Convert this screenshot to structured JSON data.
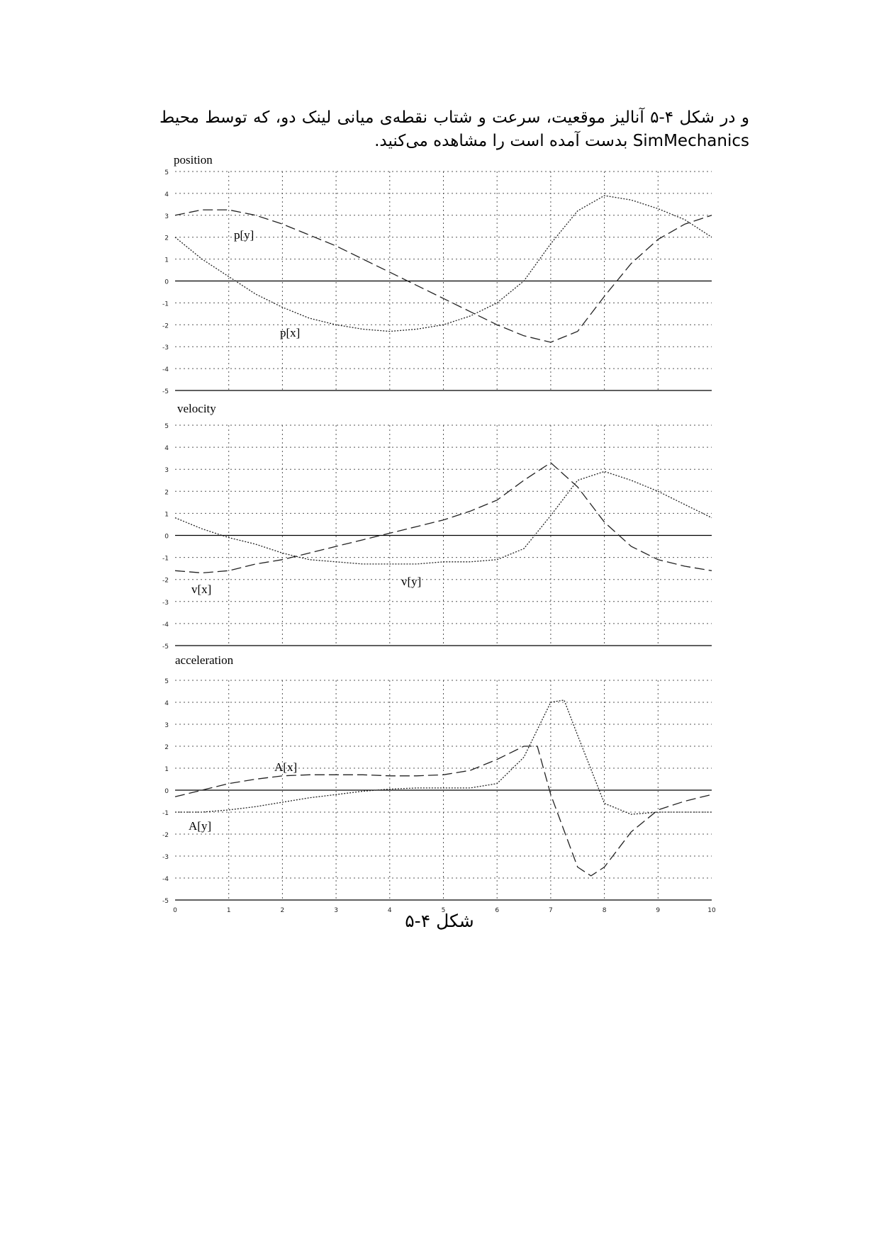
{
  "paragraph": "و در شکل ۴-۵ آنالیز موقعیت، سرعت و شتاب نقطه‌ی میانی لینک دو، که توسط محیط SimMechanics بدست آمده است را مشاهده می‌کنید.",
  "caption": "شکل ۴-۵",
  "chart_data": [
    {
      "type": "line",
      "title": "position",
      "xlim": [
        0,
        10
      ],
      "ylim": [
        -5,
        5
      ],
      "yticks": [
        5,
        4,
        3,
        2,
        1,
        0,
        -1,
        -2,
        -3,
        -4,
        -5
      ],
      "grid": true,
      "series": [
        {
          "name": "p[x]",
          "style": "dotted",
          "x": [
            0,
            0.5,
            1,
            1.5,
            2,
            2.5,
            3,
            3.5,
            4,
            4.5,
            5,
            5.5,
            6,
            6.5,
            7,
            7.5,
            8,
            8.5,
            9,
            9.5,
            10
          ],
          "y": [
            2.0,
            1.0,
            0.2,
            -0.6,
            -1.2,
            -1.7,
            -2.0,
            -2.2,
            -2.3,
            -2.2,
            -2.0,
            -1.6,
            -1.0,
            0.0,
            1.7,
            3.2,
            3.9,
            3.7,
            3.3,
            2.8,
            2.0
          ]
        },
        {
          "name": "p[y]",
          "style": "dashed",
          "x": [
            0,
            0.5,
            1,
            1.5,
            2,
            2.5,
            3,
            3.5,
            4,
            4.5,
            5,
            5.5,
            6,
            6.5,
            7,
            7.5,
            8,
            8.5,
            9,
            9.5,
            10
          ],
          "y": [
            3.0,
            3.25,
            3.25,
            3.0,
            2.6,
            2.1,
            1.6,
            1.0,
            0.4,
            -0.2,
            -0.8,
            -1.4,
            -2.0,
            -2.5,
            -2.8,
            -2.3,
            -0.7,
            0.8,
            1.9,
            2.6,
            3.0
          ]
        }
      ]
    },
    {
      "type": "line",
      "title": "velocity",
      "xlim": [
        0,
        10
      ],
      "ylim": [
        -5,
        5
      ],
      "yticks": [
        5,
        4,
        3,
        2,
        1,
        0,
        -1,
        -2,
        -3,
        -4,
        -5
      ],
      "grid": true,
      "series": [
        {
          "name": "v[x]",
          "style": "dotted",
          "x": [
            0,
            0.5,
            1,
            1.5,
            2,
            2.5,
            3,
            3.5,
            4,
            4.5,
            5,
            5.5,
            6,
            6.5,
            7,
            7.5,
            8,
            8.5,
            9,
            9.5,
            10
          ],
          "y": [
            0.8,
            0.3,
            -0.1,
            -0.4,
            -0.8,
            -1.1,
            -1.2,
            -1.3,
            -1.3,
            -1.3,
            -1.2,
            -1.2,
            -1.1,
            -0.6,
            0.9,
            2.5,
            2.9,
            2.5,
            2.0,
            1.4,
            0.8
          ]
        },
        {
          "name": "v[y]",
          "style": "dashed",
          "x": [
            0,
            0.5,
            1,
            1.5,
            2,
            2.5,
            3,
            3.5,
            4,
            4.5,
            5,
            5.5,
            6,
            6.5,
            7,
            7.5,
            8,
            8.5,
            9,
            9.5,
            10
          ],
          "y": [
            -1.6,
            -1.7,
            -1.6,
            -1.3,
            -1.1,
            -0.8,
            -0.5,
            -0.2,
            0.1,
            0.4,
            0.7,
            1.1,
            1.6,
            2.5,
            3.3,
            2.2,
            0.6,
            -0.5,
            -1.1,
            -1.4,
            -1.6
          ]
        }
      ]
    },
    {
      "type": "line",
      "title": "acceleration",
      "xlabel_ticks": [
        "0",
        "1",
        "2",
        "3",
        "4",
        "5",
        "6",
        "7",
        "8",
        "9",
        "10"
      ],
      "xlim": [
        0,
        10
      ],
      "ylim": [
        -5,
        5
      ],
      "yticks": [
        5,
        4,
        3,
        2,
        1,
        0,
        -1,
        -2,
        -3,
        -4,
        -5
      ],
      "grid": true,
      "series": [
        {
          "name": "A[x]",
          "style": "dashed",
          "x": [
            0,
            0.5,
            1,
            1.5,
            2,
            2.5,
            3,
            3.5,
            4,
            4.5,
            5,
            5.5,
            6,
            6.5,
            6.75,
            7,
            7.5,
            7.75,
            8,
            8.5,
            9,
            9.5,
            10
          ],
          "y": [
            -0.3,
            0.0,
            0.3,
            0.5,
            0.65,
            0.7,
            0.7,
            0.7,
            0.65,
            0.65,
            0.7,
            0.9,
            1.4,
            2.0,
            2.0,
            -0.2,
            -3.5,
            -3.9,
            -3.5,
            -1.9,
            -0.9,
            -0.5,
            -0.2
          ]
        },
        {
          "name": "A[y]",
          "style": "dotted",
          "x": [
            0,
            0.5,
            1,
            1.5,
            2,
            2.5,
            3,
            3.5,
            4,
            4.5,
            5,
            5.5,
            6,
            6.5,
            7,
            7.25,
            7.5,
            8,
            8.5,
            9,
            9.5,
            10
          ],
          "y": [
            -1.0,
            -1.0,
            -0.9,
            -0.75,
            -0.55,
            -0.35,
            -0.2,
            -0.05,
            0.05,
            0.1,
            0.1,
            0.1,
            0.3,
            1.5,
            4.0,
            4.1,
            2.5,
            -0.6,
            -1.1,
            -1.0,
            -1.0,
            -1.0
          ]
        }
      ]
    }
  ]
}
